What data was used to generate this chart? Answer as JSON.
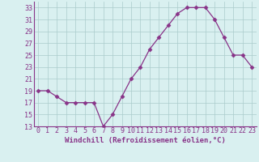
{
  "x": [
    0,
    1,
    2,
    3,
    4,
    5,
    6,
    7,
    8,
    9,
    10,
    11,
    12,
    13,
    14,
    15,
    16,
    17,
    18,
    19,
    20,
    21,
    22,
    23
  ],
  "y": [
    19,
    19,
    18,
    17,
    17,
    17,
    17,
    13,
    15,
    18,
    21,
    23,
    26,
    28,
    30,
    32,
    33,
    33,
    33,
    31,
    28,
    25,
    25,
    23
  ],
  "line_color": "#883388",
  "marker": "D",
  "marker_size": 2.5,
  "bg_color": "#d9f0f0",
  "grid_color": "#aacccc",
  "xlabel": "Windchill (Refroidissement éolien,°C)",
  "xlabel_fontsize": 6.5,
  "tick_fontsize": 6.0,
  "xlim": [
    -0.5,
    23.5
  ],
  "ylim": [
    13,
    34
  ],
  "yticks": [
    13,
    15,
    17,
    19,
    21,
    23,
    25,
    27,
    29,
    31,
    33
  ],
  "xticks": [
    0,
    1,
    2,
    3,
    4,
    5,
    6,
    7,
    8,
    9,
    10,
    11,
    12,
    13,
    14,
    15,
    16,
    17,
    18,
    19,
    20,
    21,
    22,
    23
  ]
}
